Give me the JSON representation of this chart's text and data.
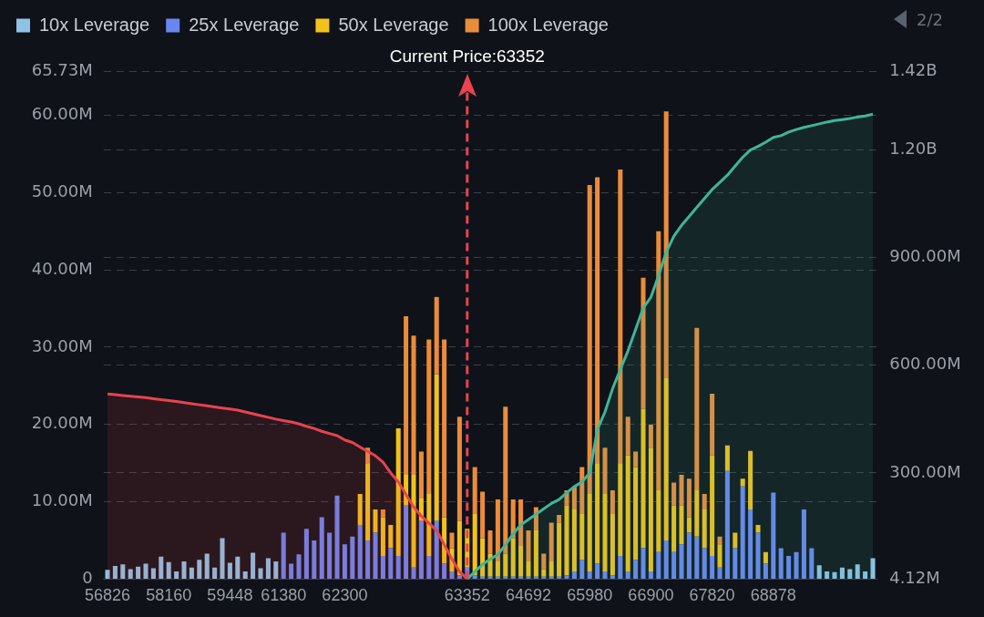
{
  "chart_data": {
    "type": "bar",
    "stacked": true,
    "legend": "top left",
    "grid": "y",
    "categories": [
      "56826",
      null,
      null,
      null,
      null,
      null,
      null,
      null,
      "58160",
      null,
      null,
      null,
      null,
      null,
      null,
      null,
      "59448",
      null,
      null,
      null,
      null,
      null,
      null,
      "61380",
      null,
      null,
      null,
      null,
      null,
      null,
      null,
      "62300",
      null,
      null,
      null,
      null,
      null,
      null,
      null,
      null,
      null,
      null,
      null,
      null,
      null,
      null,
      null,
      "63352",
      null,
      null,
      null,
      null,
      null,
      null,
      null,
      "64692",
      null,
      null,
      null,
      null,
      null,
      null,
      null,
      "65980",
      null,
      null,
      null,
      null,
      null,
      null,
      null,
      "66900",
      null,
      null,
      null,
      null,
      null,
      null,
      null,
      "67820",
      null,
      null,
      null,
      null,
      null,
      null,
      null,
      "68878",
      null,
      null,
      null,
      null,
      null,
      null,
      null,
      null,
      null,
      null,
      null,
      null,
      null
    ],
    "ylim": [
      0,
      65.73
    ],
    "yticks": [
      {
        "value": 0,
        "label": "0"
      },
      {
        "value": 10,
        "label": "10.00M"
      },
      {
        "value": 20,
        "label": "20.00M"
      },
      {
        "value": 30,
        "label": "30.00M"
      },
      {
        "value": 40,
        "label": "40.00M"
      },
      {
        "value": 50,
        "label": "50.00M"
      },
      {
        "value": 60,
        "label": "60.00M"
      },
      {
        "value": 65.73,
        "label": "65.73M"
      }
    ],
    "y2lim": [
      4120000,
      1420000000
    ],
    "y2ticks": [
      {
        "value": 4120000,
        "label": "4.12M"
      },
      {
        "value": 300000000,
        "label": "300.00M"
      },
      {
        "value": 600000000,
        "label": "600.00M"
      },
      {
        "value": 900000000,
        "label": "900.00M"
      },
      {
        "value": 1200000000,
        "label": "1.20B"
      },
      {
        "value": 1420000000,
        "label": "1.42B"
      }
    ],
    "series": [
      {
        "name": "10x Leverage",
        "color": "#8ec3e6",
        "values": [
          1.2,
          1.7,
          1.9,
          1.3,
          1.6,
          2.0,
          1.4,
          2.9,
          2.2,
          1.0,
          2.3,
          1.5,
          2.5,
          3.3,
          1.5,
          5.3,
          2.1,
          2.9,
          1.0,
          3.4,
          1.4,
          2.7,
          2.3,
          0,
          0,
          0,
          0,
          0,
          0,
          0,
          0,
          0,
          0,
          0,
          0,
          0,
          0,
          0,
          0,
          0,
          0,
          0,
          0,
          0,
          0,
          0,
          0,
          0,
          0,
          0,
          0,
          0,
          0,
          0,
          0,
          0,
          0,
          0,
          0,
          0,
          0,
          0,
          0,
          0,
          0,
          0,
          0,
          0,
          0,
          0,
          0,
          0,
          0,
          0,
          0,
          0,
          0,
          0,
          0,
          0,
          0,
          0,
          0,
          0,
          0,
          0,
          0,
          0,
          0,
          0,
          0,
          0,
          0,
          1.8,
          1.0,
          0.9,
          1.5,
          1.3,
          1.9,
          1.0,
          2.7
        ]
      },
      {
        "name": "25x Leverage",
        "color": "#6a86f0",
        "values": [
          0,
          0,
          0,
          0,
          0,
          0,
          0,
          0,
          0,
          0,
          0,
          0,
          0,
          0,
          0,
          0,
          0,
          0,
          0,
          0,
          0,
          0,
          0,
          6.0,
          2.0,
          3.2,
          6.5,
          5.0,
          8.0,
          6.0,
          10.8,
          4.5,
          5.5,
          7.0,
          5.0,
          6.0,
          3.0,
          4.0,
          3.0,
          9.5,
          1.5,
          7.5,
          3.0,
          7.5,
          2.0,
          1.0,
          0.5,
          1.5,
          0.5,
          0.3,
          0.3,
          0.3,
          0.3,
          0.3,
          0.3,
          0.3,
          0.3,
          0.3,
          0.3,
          0.3,
          0.5,
          1.0,
          2.5,
          1.0,
          2.0,
          1.0,
          0.5,
          3.0,
          1.0,
          2.5,
          4.0,
          1.0,
          3.5,
          5.0,
          3.5,
          4.5,
          6.0,
          5.5,
          4.0,
          3.0,
          1.5,
          14.0,
          4.0,
          12.0,
          9.0,
          6.0,
          2.0,
          11.2,
          4.0,
          3.0,
          3.5,
          9.0,
          4.0,
          0,
          0,
          0,
          0,
          0,
          0,
          0,
          0
        ]
      },
      {
        "name": "50x Leverage",
        "color": "#f2c21b",
        "values": [
          0,
          0,
          0,
          0,
          0,
          0,
          0,
          0,
          0,
          0,
          0,
          0,
          0,
          0,
          0,
          0,
          0,
          0,
          0,
          0,
          0,
          0,
          0,
          0,
          0,
          0,
          0,
          0,
          0,
          0,
          0,
          0,
          0,
          4.0,
          10.0,
          3.0,
          5.0,
          3.0,
          16.5,
          4.0,
          12.0,
          3.0,
          8.0,
          19.0,
          6.0,
          3.0,
          7.0,
          5.0,
          8.0,
          5.0,
          3.0,
          2.0,
          3.0,
          5.0,
          4.0,
          2.0,
          6.0,
          1.0,
          2.0,
          7.0,
          9.0,
          8.0,
          6.0,
          10.0,
          13.0,
          10.0,
          8.0,
          12.0,
          15.0,
          12.0,
          18.0,
          16.0,
          8.0,
          21.0,
          6.0,
          5.0,
          2.0,
          6.0,
          5.0,
          13.0,
          3.0,
          3.3,
          2.0,
          1.0,
          7.6,
          1.0,
          1.5,
          0,
          0,
          0,
          0,
          0,
          0,
          0,
          0,
          0,
          0,
          0,
          0,
          0,
          0
        ]
      },
      {
        "name": "100x Leverage",
        "color": "#eb8c3b",
        "values": [
          0,
          0,
          0,
          0,
          0,
          0,
          0,
          0,
          0,
          0,
          0,
          0,
          0,
          0,
          0,
          0,
          0,
          0,
          0,
          0,
          0,
          0,
          0,
          0,
          0,
          0,
          0,
          0,
          0,
          0,
          0,
          0,
          0,
          0,
          2.0,
          0,
          1.0,
          0,
          0,
          20.5,
          18.0,
          6.0,
          20.0,
          10.0,
          23.0,
          2.0,
          13.5,
          0,
          6.0,
          6.0,
          3.0,
          8.0,
          19.0,
          5.0,
          6.0,
          4.0,
          3.0,
          2.0,
          5.0,
          1.0,
          2.0,
          3.0,
          6.0,
          40.0,
          37.0,
          6.0,
          3.0,
          38.0,
          5.0,
          2.0,
          17.0,
          3.0,
          33.5,
          34.5,
          3.0,
          4.0,
          5.0,
          21.0,
          2.0,
          8.0,
          1.0,
          0,
          0,
          0,
          0,
          0,
          0,
          0,
          0,
          0,
          0,
          0,
          0,
          0,
          0,
          0,
          0,
          0,
          0,
          0,
          0
        ]
      },
      {
        "type": "area",
        "axis": "y2",
        "color": "#e8434f",
        "values": [
          520000000,
          518000000,
          516000000,
          514000000,
          512000000,
          510000000,
          507000000,
          504000000,
          502000000,
          499000000,
          496000000,
          493000000,
          490000000,
          487000000,
          484000000,
          481000000,
          478000000,
          475000000,
          470000000,
          465000000,
          460000000,
          455000000,
          450000000,
          446000000,
          442000000,
          437000000,
          430000000,
          424000000,
          416000000,
          410000000,
          404000000,
          392000000,
          385000000,
          372000000,
          360000000,
          348000000,
          330000000,
          300000000,
          275000000,
          240000000,
          205000000,
          180000000,
          160000000,
          140000000,
          100000000,
          60000000,
          25000000,
          4120000,
          null,
          null,
          null,
          null,
          null,
          null,
          null,
          null,
          null,
          null,
          null,
          null,
          null,
          null,
          null,
          null,
          null,
          null,
          null,
          null,
          null,
          null,
          null,
          null,
          null,
          null,
          null,
          null,
          null,
          null,
          null,
          null,
          null,
          null,
          null,
          null,
          null,
          null,
          null,
          null,
          null,
          null,
          null,
          null,
          null,
          null,
          null,
          null,
          null,
          null,
          null,
          null,
          null
        ]
      },
      {
        "type": "area",
        "axis": "y2",
        "color": "#3fb59a",
        "values": [
          null,
          null,
          null,
          null,
          null,
          null,
          null,
          null,
          null,
          null,
          null,
          null,
          null,
          null,
          null,
          null,
          null,
          null,
          null,
          null,
          null,
          null,
          null,
          null,
          null,
          null,
          null,
          null,
          null,
          null,
          null,
          null,
          null,
          null,
          null,
          null,
          null,
          null,
          null,
          null,
          null,
          null,
          null,
          null,
          null,
          null,
          null,
          4120000,
          25000000,
          45000000,
          60000000,
          72000000,
          100000000,
          130000000,
          155000000,
          170000000,
          185000000,
          200000000,
          215000000,
          226000000,
          245000000,
          262000000,
          275000000,
          300000000,
          420000000,
          470000000,
          535000000,
          588000000,
          640000000,
          700000000,
          760000000,
          790000000,
          850000000,
          915000000,
          960000000,
          990000000,
          1015000000,
          1040000000,
          1065000000,
          1090000000,
          1110000000,
          1130000000,
          1155000000,
          1180000000,
          1200000000,
          1210000000,
          1222000000,
          1235000000,
          1240000000,
          1250000000,
          1257000000,
          1263000000,
          1268000000,
          1273000000,
          1278000000,
          1282000000,
          1285000000,
          1288000000,
          1292000000,
          1295000000,
          1300000000
        ]
      }
    ],
    "ref_lines": [
      {
        "axis": "x",
        "value": "63352",
        "label": "Current Price:63352",
        "color": "#e8434f",
        "line_style": "dashed"
      }
    ],
    "annotations": [
      "2/2"
    ]
  }
}
